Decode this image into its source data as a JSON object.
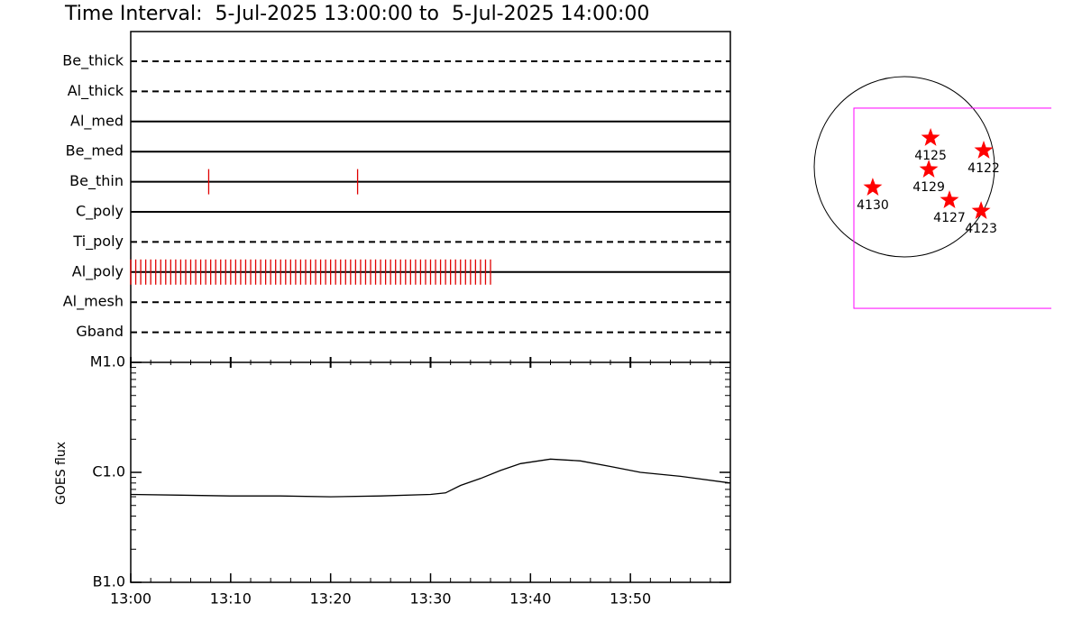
{
  "chart_data": [
    {
      "type": "timeline",
      "title": "Time Interval:  5-Jul-2025 13:00:00 to  5-Jul-2025 14:00:00",
      "categories": [
        "Be_thick",
        "Al_thick",
        "Al_med",
        "Be_med",
        "Be_thin",
        "C_poly",
        "Ti_poly",
        "Al_poly",
        "Al_mesh",
        "Gband"
      ],
      "line_styles": [
        "dashed",
        "dashed",
        "solid",
        "solid",
        "solid",
        "solid",
        "dashed",
        "solid",
        "dashed",
        "dashed"
      ],
      "events": [
        [],
        [],
        [],
        [],
        [
          7.8,
          22.7
        ],
        [],
        [],
        [
          0,
          0.5,
          1,
          1.5,
          2,
          2.5,
          3,
          3.5,
          4,
          4.5,
          5,
          5.5,
          6,
          6.5,
          7,
          7.5,
          8,
          8.5,
          9,
          9.5,
          10,
          10.5,
          11,
          11.5,
          12,
          12.5,
          13,
          13.5,
          14,
          14.5,
          15,
          15.5,
          16,
          16.5,
          17,
          17.5,
          18,
          18.5,
          19,
          19.5,
          20,
          20.5,
          21,
          21.5,
          22,
          22.5,
          23,
          23.5,
          24,
          24.5,
          25,
          25.5,
          26,
          26.5,
          27,
          27.5,
          28,
          28.5,
          29,
          29.5,
          30,
          30.5,
          31,
          31.5,
          32,
          32.5,
          33,
          33.5,
          34,
          34.5,
          35,
          35.5,
          36
        ],
        [],
        []
      ],
      "color": "#e00000",
      "xlim": [
        0,
        60
      ]
    },
    {
      "type": "line",
      "ylabel": "GOES flux",
      "x": [
        0,
        5,
        10,
        15,
        20,
        25,
        30,
        31.5,
        33,
        35,
        37,
        39,
        42,
        45,
        48,
        51,
        55,
        60
      ],
      "values": [
        6.3e-07,
        6.2e-07,
        6.1e-07,
        6.1e-07,
        6e-07,
        6.1e-07,
        6.3e-07,
        6.5e-07,
        7.6e-07,
        8.8e-07,
        1.04e-06,
        1.2e-06,
        1.32e-06,
        1.27e-06,
        1.13e-06,
        1e-06,
        9.2e-07,
        8e-07
      ],
      "color": "#000000",
      "log_scale": true,
      "xlim": [
        0,
        60
      ],
      "xticks": [
        {
          "value": 0,
          "label": "13:00"
        },
        {
          "value": 10,
          "label": "13:10"
        },
        {
          "value": 20,
          "label": "13:20"
        },
        {
          "value": 30,
          "label": "13:30"
        },
        {
          "value": 40,
          "label": "13:40"
        },
        {
          "value": 50,
          "label": "13:50"
        }
      ],
      "x_minor_step": 2,
      "ylim": [
        1e-07,
        1e-05
      ],
      "yticks": [
        {
          "value": 1e-07,
          "label": "B1.0"
        },
        {
          "value": 1e-06,
          "label": "C1.0"
        },
        {
          "value": 1e-05,
          "label": "M1.0"
        }
      ]
    },
    {
      "type": "map",
      "disk_radius": 950,
      "regions": [
        {
          "name": "4125",
          "x": 276,
          "y": 304
        },
        {
          "name": "4122",
          "x": 836,
          "y": 171
        },
        {
          "name": "4129",
          "x": 257,
          "y": -29
        },
        {
          "name": "4130",
          "x": -333,
          "y": -219
        },
        {
          "name": "4127",
          "x": 475,
          "y": -352
        },
        {
          "name": "4123",
          "x": 808,
          "y": -466
        }
      ],
      "color": "#ff0000",
      "fov": {
        "xlim": [
          -532,
          1600
        ],
        "ylim": [
          -1492,
          618
        ]
      },
      "fov_color": "#ff00ff"
    }
  ]
}
